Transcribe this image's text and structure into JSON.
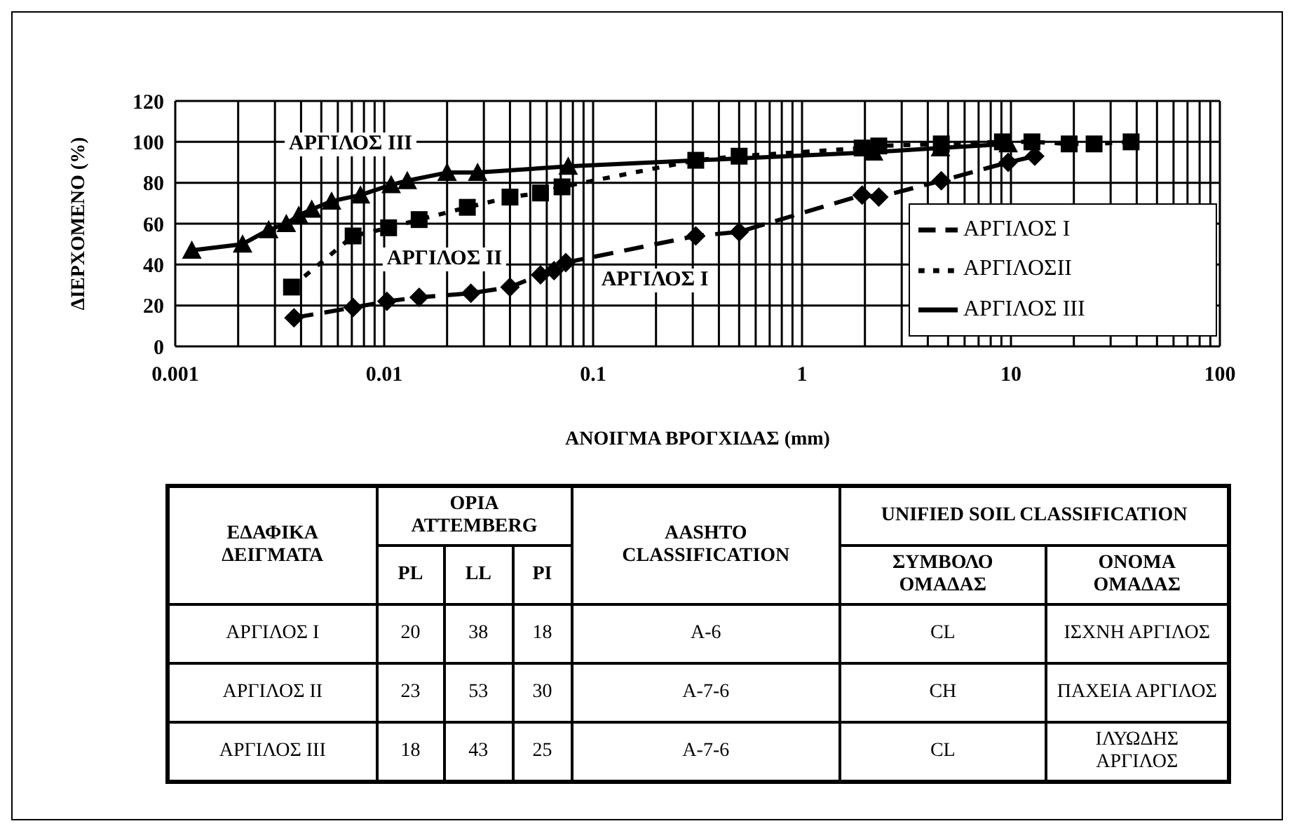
{
  "chart_data": [
    {
      "type": "line",
      "ylabel": "ΔΙΕΡΧΟΜΕΝΟ (%)",
      "xlabel": "ΑΝΟΙΓΜΑ ΒΡΟΓΧΙΔΑΣ (mm)",
      "log": "x",
      "grid": true,
      "legend": "right",
      "xlim": [
        0.001,
        100
      ],
      "ylim": [
        0,
        120
      ],
      "yticks": [
        0,
        20,
        40,
        60,
        80,
        100,
        120
      ],
      "xticks": [
        0.001,
        {
          "value": 0.002,
          "label": null
        },
        {
          "value": 0.003,
          "label": null
        },
        {
          "value": 0.004,
          "label": null
        },
        {
          "value": 0.005,
          "label": null
        },
        {
          "value": 0.006,
          "label": null
        },
        {
          "value": 0.007,
          "label": null
        },
        {
          "value": 0.008,
          "label": null
        },
        {
          "value": 0.009,
          "label": null
        },
        0.01,
        {
          "value": 0.02,
          "label": null
        },
        {
          "value": 0.03,
          "label": null
        },
        {
          "value": 0.04,
          "label": null
        },
        {
          "value": 0.05,
          "label": null
        },
        {
          "value": 0.06,
          "label": null
        },
        {
          "value": 0.07,
          "label": null
        },
        {
          "value": 0.08,
          "label": null
        },
        {
          "value": 0.09,
          "label": null
        },
        0.1,
        {
          "value": 0.2,
          "label": null
        },
        {
          "value": 0.3,
          "label": null
        },
        {
          "value": 0.4,
          "label": null
        },
        {
          "value": 0.5,
          "label": null
        },
        {
          "value": 0.6,
          "label": null
        },
        {
          "value": 0.7,
          "label": null
        },
        {
          "value": 0.8,
          "label": null
        },
        {
          "value": 0.9,
          "label": null
        },
        1,
        {
          "value": 2,
          "label": null
        },
        {
          "value": 3,
          "label": null
        },
        {
          "value": 4,
          "label": null
        },
        {
          "value": 5,
          "label": null
        },
        {
          "value": 6,
          "label": null
        },
        {
          "value": 7,
          "label": null
        },
        {
          "value": 8,
          "label": null
        },
        {
          "value": 9,
          "label": null
        },
        10,
        {
          "value": 20,
          "label": null
        },
        {
          "value": 30,
          "label": null
        },
        {
          "value": 40,
          "label": null
        },
        {
          "value": 50,
          "label": null
        },
        {
          "value": 60,
          "label": null
        },
        {
          "value": 70,
          "label": null
        },
        {
          "value": 80,
          "label": null
        },
        {
          "value": 90,
          "label": null
        },
        100
      ],
      "series": [
        {
          "name": "ΑΡΓΙΛΟΣ Ι",
          "color": "#000000",
          "marker": "diamond",
          "line_style": "dashed",
          "x": [
            0.0037,
            0.0071,
            0.0103,
            0.0147,
            0.026,
            0.04,
            0.056,
            0.065,
            0.074,
            0.31,
            0.5,
            1.94,
            2.33,
            4.64,
            9.7,
            13
          ],
          "values": [
            14,
            19,
            22,
            24,
            26,
            29,
            35,
            37,
            41,
            54,
            56,
            74,
            73,
            81,
            90,
            93
          ]
        },
        {
          "name": "ΑΡΓΙΛΟΣΙΙ",
          "color": "#000000",
          "marker": "square",
          "line_style": "dotted",
          "x": [
            0.0036,
            0.0071,
            0.0105,
            0.0147,
            0.025,
            0.04,
            0.056,
            0.071,
            0.31,
            0.5,
            1.94,
            2.33,
            4.64,
            9.1,
            12.6,
            19,
            25,
            37.6
          ],
          "values": [
            29,
            54,
            58,
            62,
            68,
            73,
            75,
            78,
            91,
            93,
            97,
            98,
            99,
            100,
            100,
            99,
            99,
            100
          ]
        },
        {
          "name": "ΑΡΓΙΛΟΣ ΙΙΙ",
          "color": "#000000",
          "marker": "triangle",
          "line_style": "solid",
          "x": [
            0.0012,
            0.0021,
            0.0028,
            0.0034,
            0.0039,
            0.0045,
            0.0056,
            0.0077,
            0.0108,
            0.0129,
            0.02,
            0.028,
            0.076,
            2.2,
            4.6,
            9.7
          ],
          "values": [
            47,
            50,
            57,
            60,
            64,
            67,
            71,
            74,
            79,
            81,
            85,
            85,
            88,
            95,
            97,
            99
          ]
        }
      ],
      "annotations": [
        "ΑΡΓΙΛΟΣ ΙΙΙ",
        "ΑΡΓΙΛΟΣ ΙΙ",
        "ΑΡΓΙΛΟΣ Ι"
      ]
    },
    {
      "type": "other",
      "annotations": [
        "ΕΔΑΦΙΚΑ ΔΕΙΓΜΑΤΑ",
        "ΟΡΙΑ ATTEMBERG",
        "AASHTO CLASSIFICATION",
        "UNIFIED SOIL CLASSIFICATION",
        "PL",
        "LL",
        "PI",
        "ΣΥΜΒΟΛΟ ΟΜΑΔΑΣ",
        "ΟΝΟΜΑ ΟΜΑΔΑΣ",
        "ΑΡΓΙΛΟΣ Ι",
        "20",
        "38",
        "18",
        "A-6",
        "CL",
        "ΙΣΧΝΗ ΑΡΓΙΛΟΣ",
        "ΑΡΓΙΛΟΣ ΙΙ",
        "23",
        "53",
        "30",
        "A-7-6",
        "CH",
        "ΠΑΧΕΙΑ ΑΡΓΙΛΟΣ",
        "ΑΡΓΙΛΟΣ ΙΙΙ",
        "18",
        "43",
        "25",
        "A-7-6",
        "CL",
        "ΙΛΥΩΔΗΣ ΑΡΓΙΛΟΣ"
      ]
    }
  ]
}
